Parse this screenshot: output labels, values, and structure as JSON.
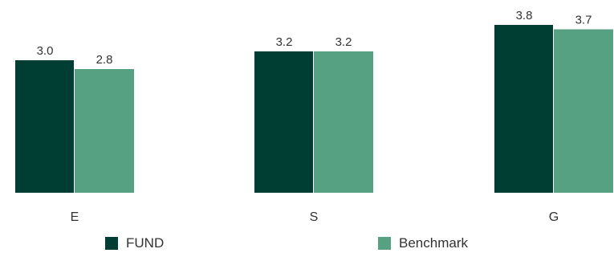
{
  "chart_data": {
    "type": "bar",
    "categories": [
      "E",
      "S",
      "G"
    ],
    "series": [
      {
        "name": "FUND",
        "values": [
          3.0,
          3.2,
          3.8
        ],
        "color": "#003d32"
      },
      {
        "name": "Benchmark",
        "values": [
          2.8,
          3.2,
          3.7
        ],
        "color": "#57a183"
      }
    ],
    "data_labels": [
      [
        "3.0",
        "3.2",
        "3.8"
      ],
      [
        "2.8",
        "3.2",
        "3.7"
      ]
    ],
    "ylim": [
      0,
      4.5
    ],
    "grid": false,
    "legend_position": "bottom"
  }
}
